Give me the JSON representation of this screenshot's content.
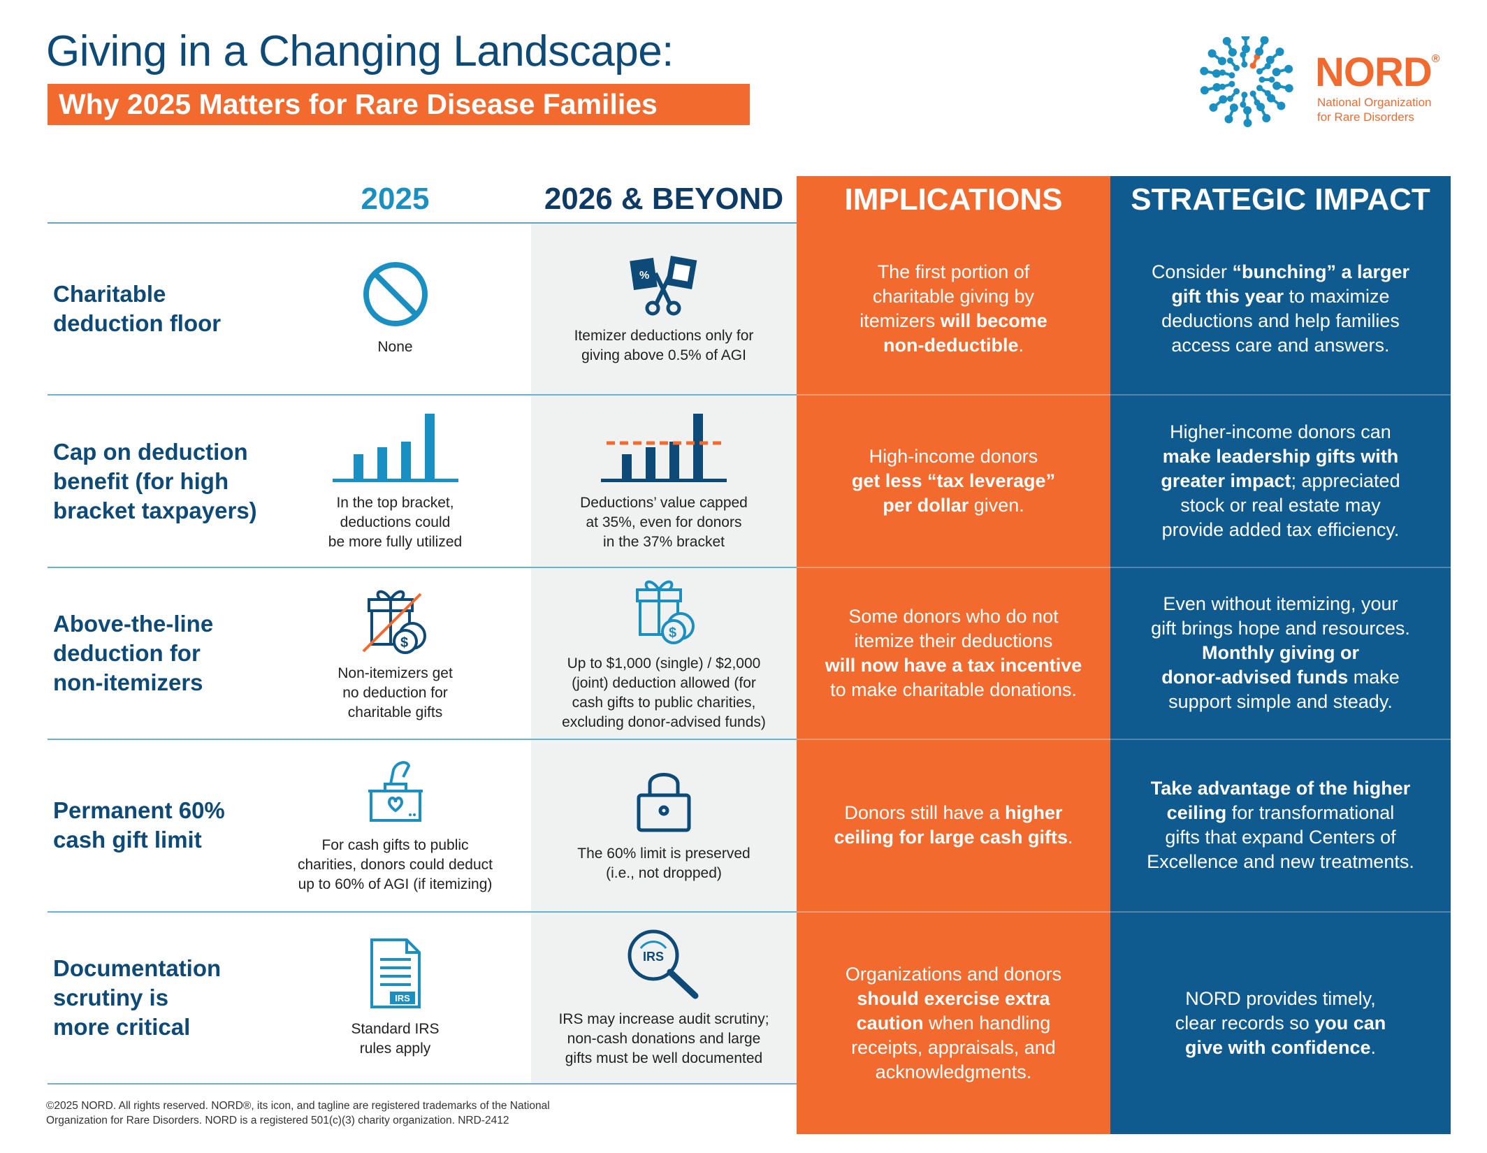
{
  "header": {
    "title": "Giving in a Changing Landscape:",
    "subtitle": "Why 2025 Matters for Rare Disease Families"
  },
  "logo": {
    "word": "NORD",
    "reg": "®",
    "tagline": "National Organization\nfor Rare Disorders"
  },
  "colors": {
    "orange": "#f26a2e",
    "blue": "#0f5a8e",
    "cyan": "#1a8fc1",
    "navy": "#0d4a78"
  },
  "columns": {
    "c2025": "2025",
    "c2026": "2026 & BEYOND",
    "implications": "IMPLICATIONS",
    "strategic": "STRATEGIC IMPACT"
  },
  "rows": [
    {
      "label": "Charitable\ndeduction floor",
      "icon_2025": "no-sign-icon",
      "text_2025": "None",
      "icon_2026": "coupon-scissors-icon",
      "text_2026": "Itemizer deductions only for\ngiving above 0.5% of AGI",
      "implications": [
        {
          "t": "The first portion of\ncharitable giving by\nitemizers ",
          "b": false
        },
        {
          "t": "will become\nnon-deductible",
          "b": true
        },
        {
          "t": ".",
          "b": false
        }
      ],
      "strategic": [
        {
          "t": "Consider ",
          "b": false
        },
        {
          "t": "“bunching” a larger\ngift this year",
          "b": true
        },
        {
          "t": " to maximize\ndeductions and help families\naccess care and answers.",
          "b": false
        }
      ]
    },
    {
      "label": "Cap on deduction\nbenefit (for high\nbracket taxpayers)",
      "icon_2025": "bar-chart-icon",
      "text_2025": "In the top bracket,\ndeductions could\nbe more fully utilized",
      "icon_2026": "capped-bar-chart-icon",
      "text_2026": "Deductions’ value capped\nat 35%, even for donors\nin the 37% bracket",
      "implications": [
        {
          "t": "High-income donors\n",
          "b": false
        },
        {
          "t": "get less “tax leverage”\nper dollar",
          "b": true
        },
        {
          "t": " given.",
          "b": false
        }
      ],
      "strategic": [
        {
          "t": "Higher-income donors can\n",
          "b": false
        },
        {
          "t": "make leadership gifts with\ngreater impact",
          "b": true
        },
        {
          "t": "; appreciated\nstock or real estate may\nprovide added tax efficiency.",
          "b": false
        }
      ]
    },
    {
      "label": "Above-the-line\ndeduction for\nnon-itemizers",
      "icon_2025": "gift-crossed-icon",
      "text_2025": "Non-itemizers get\nno deduction for\ncharitable gifts",
      "icon_2026": "gift-coins-icon",
      "text_2026": "Up to $1,000 (single) / $2,000\n(joint) deduction allowed (for\ncash gifts to public charities,\nexcluding donor-advised funds)",
      "implications": [
        {
          "t": "Some donors who do not\nitemize their deductions\n",
          "b": false
        },
        {
          "t": "will now have a tax incentive",
          "b": true
        },
        {
          "t": "\nto make charitable donations.",
          "b": false
        }
      ],
      "strategic": [
        {
          "t": "Even without itemizing, your\ngift brings hope and resources.\n",
          "b": false
        },
        {
          "t": "Monthly giving or\ndonor-advised funds",
          "b": true
        },
        {
          "t": " make\nsupport simple and steady.",
          "b": false
        }
      ]
    },
    {
      "label": "Permanent 60%\ncash gift limit",
      "icon_2025": "donation-box-icon",
      "text_2025": "For cash gifts to public\ncharities, donors could deduct\nup to 60% of AGI (if itemizing)",
      "icon_2026": "lock-icon",
      "text_2026": "The 60% limit is preserved\n(i.e., not dropped)",
      "implications": [
        {
          "t": "Donors still have a ",
          "b": false
        },
        {
          "t": "higher\nceiling for large cash gifts",
          "b": true
        },
        {
          "t": ".",
          "b": false
        }
      ],
      "strategic": [
        {
          "t": "Take advantage of the higher\nceiling",
          "b": true
        },
        {
          "t": " for transformational\ngifts that expand Centers of\nExcellence and new treatments.",
          "b": false
        }
      ]
    },
    {
      "label": "Documentation\nscrutiny is\nmore critical",
      "icon_2025": "irs-document-icon",
      "text_2025": "Standard IRS\nrules apply",
      "icon_label_2025": "IRS",
      "icon_2026": "irs-magnifier-icon",
      "text_2026": "IRS may increase audit scrutiny;\nnon-cash donations and large\ngifts must be well documented",
      "icon_label_2026": "IRS",
      "implications": [
        {
          "t": "Organizations and donors\n",
          "b": false
        },
        {
          "t": "should exercise extra\ncaution",
          "b": true
        },
        {
          "t": " when handling\nreceipts, appraisals, and\nacknowledgments.",
          "b": false
        }
      ],
      "strategic": [
        {
          "t": "NORD provides timely,\nclear records so ",
          "b": false
        },
        {
          "t": "you can\ngive with confidence",
          "b": true
        },
        {
          "t": ".",
          "b": false
        }
      ]
    }
  ],
  "footer": "©2025 NORD. All rights reserved. NORD®, its icon, and tagline are registered trademarks of the National\nOrganization for Rare Disorders. NORD is a registered 501(c)(3) charity organization. NRD-2412"
}
